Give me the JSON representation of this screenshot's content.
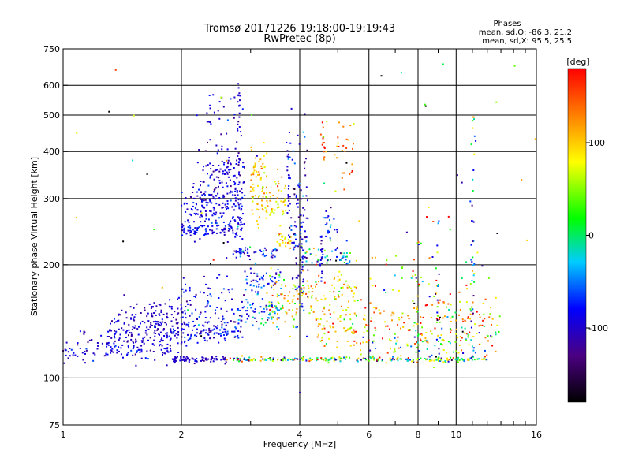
{
  "chart_data": {
    "type": "scatter",
    "title": "Tromsø 20171226 19:18:00-19:19:43",
    "subtitle": "RwPretec (8p)",
    "stats_header": "Phases",
    "stats_o": "mean, sd,O: -86.3, 21.2",
    "stats_x": "mean, sd,X:  95.5, 25.5",
    "xlabel": "Frequency [MHz]",
    "ylabel": "Stationary phase Virtual Height [km]",
    "x_scale": "log",
    "y_scale": "log",
    "xlim": [
      1,
      16
    ],
    "ylim": [
      75,
      750
    ],
    "x_ticks": [
      1,
      2,
      4,
      6,
      8,
      10,
      16
    ],
    "x_tick_labels": [
      "1",
      "2",
      "4",
      "6",
      "8",
      "10",
      "16"
    ],
    "x_minor_ticks": [
      3,
      5,
      7,
      9,
      11,
      12,
      13,
      14,
      15
    ],
    "y_ticks": [
      75,
      100,
      200,
      300,
      400,
      500,
      600,
      750
    ],
    "y_tick_labels": [
      "75",
      "100",
      "200",
      "300",
      "400",
      "500",
      "600",
      "750"
    ],
    "grid": true,
    "colorbar": {
      "label": "[deg]",
      "min": -180,
      "max": 180,
      "ticks": [
        100,
        0,
        -100
      ],
      "tick_labels": [
        "100",
        "0",
        "-100"
      ]
    },
    "clusters": [
      {
        "type": "band",
        "f1": 1.0,
        "f2": 1.9,
        "h": 118,
        "dh": 0.035,
        "n": 90,
        "phase": -95,
        "sd": 15
      },
      {
        "type": "band",
        "f1": 1.05,
        "f2": 1.9,
        "h": 125,
        "dh": 0.04,
        "n": 60,
        "phase": -100,
        "sd": 15
      },
      {
        "type": "band",
        "f1": 1.3,
        "f2": 2.1,
        "h": 132,
        "dh": 0.05,
        "n": 80,
        "phase": -100,
        "sd": 15
      },
      {
        "type": "band",
        "f1": 1.35,
        "f2": 2.0,
        "h": 140,
        "dh": 0.05,
        "n": 70,
        "phase": -105,
        "sd": 15
      },
      {
        "type": "band",
        "f1": 1.6,
        "f2": 2.05,
        "h": 150,
        "dh": 0.06,
        "n": 50,
        "phase": -100,
        "sd": 15
      },
      {
        "type": "band",
        "f1": 1.9,
        "f2": 2.6,
        "h": 112,
        "dh": 0.01,
        "n": 80,
        "phase": -105,
        "sd": 12
      },
      {
        "type": "band",
        "f1": 2.6,
        "f2": 12.0,
        "h": 112,
        "dh": 0.008,
        "n": 240,
        "phase": 30,
        "sd": 90
      },
      {
        "type": "band",
        "f1": 2.0,
        "f2": 2.9,
        "h": 135,
        "dh": 0.05,
        "n": 110,
        "phase": -90,
        "sd": 20
      },
      {
        "type": "band",
        "f1": 2.0,
        "f2": 2.7,
        "h": 160,
        "dh": 0.08,
        "n": 60,
        "phase": -85,
        "sd": 20
      },
      {
        "type": "band",
        "f1": 2.0,
        "f2": 2.9,
        "h": 250,
        "dh": 0.03,
        "n": 110,
        "phase": -90,
        "sd": 15
      },
      {
        "type": "band",
        "f1": 2.0,
        "f2": 2.9,
        "h": 280,
        "dh": 0.05,
        "n": 110,
        "phase": -90,
        "sd": 15
      },
      {
        "type": "band",
        "f1": 2.1,
        "f2": 2.8,
        "h": 310,
        "dh": 0.03,
        "n": 45,
        "phase": -95,
        "sd": 20
      },
      {
        "type": "band",
        "f1": 2.2,
        "f2": 2.9,
        "h": 350,
        "dh": 0.07,
        "n": 70,
        "phase": -100,
        "sd": 15
      },
      {
        "type": "band",
        "f1": 2.3,
        "f2": 2.9,
        "h": 450,
        "dh": 0.18,
        "n": 55,
        "phase": -100,
        "sd": 15
      },
      {
        "type": "band",
        "f1": 2.6,
        "f2": 3.5,
        "h": 215,
        "dh": 0.015,
        "n": 50,
        "phase": -80,
        "sd": 25
      },
      {
        "type": "band",
        "f1": 2.7,
        "f2": 3.6,
        "h": 150,
        "dh": 0.05,
        "n": 70,
        "phase": -60,
        "sd": 40
      },
      {
        "type": "band",
        "f1": 2.9,
        "f2": 3.6,
        "h": 180,
        "dh": 0.05,
        "n": 55,
        "phase": -75,
        "sd": 25
      },
      {
        "type": "band",
        "f1": 3.0,
        "f2": 3.7,
        "h": 300,
        "dh": 0.08,
        "n": 90,
        "phase": 95,
        "sd": 25
      },
      {
        "type": "band",
        "f1": 3.0,
        "f2": 3.3,
        "h": 360,
        "dh": 0.06,
        "n": 35,
        "phase": 95,
        "sd": 20
      },
      {
        "type": "band",
        "f1": 3.3,
        "f2": 4.0,
        "h": 160,
        "dh": 0.08,
        "n": 60,
        "phase": 95,
        "sd": 40
      },
      {
        "type": "band",
        "f1": 3.5,
        "f2": 3.8,
        "h": 235,
        "dh": 0.03,
        "n": 25,
        "phase": 100,
        "sd": 25
      },
      {
        "type": "band",
        "f1": 3.8,
        "f2": 4.2,
        "h": 260,
        "dh": 0.3,
        "n": 90,
        "phase": -90,
        "sd": 30
      },
      {
        "type": "band",
        "f1": 4.0,
        "f2": 5.4,
        "h": 210,
        "dh": 0.03,
        "n": 60,
        "phase": -30,
        "sd": 70
      },
      {
        "type": "band",
        "f1": 4.0,
        "f2": 5.6,
        "h": 165,
        "dh": 0.07,
        "n": 80,
        "phase": 100,
        "sd": 40
      },
      {
        "type": "band",
        "f1": 4.4,
        "f2": 5.6,
        "h": 135,
        "dh": 0.08,
        "n": 60,
        "phase": 90,
        "sd": 50
      },
      {
        "type": "band",
        "f1": 4.6,
        "f2": 5.0,
        "h": 250,
        "dh": 0.05,
        "n": 20,
        "phase": -80,
        "sd": 20
      },
      {
        "type": "band",
        "f1": 4.9,
        "f2": 5.5,
        "h": 390,
        "dh": 0.1,
        "n": 25,
        "phase": 140,
        "sd": 30
      },
      {
        "type": "band",
        "f1": 5.5,
        "f2": 13.0,
        "h": 145,
        "dh": 0.07,
        "n": 130,
        "phase": 110,
        "sd": 50
      },
      {
        "type": "band",
        "f1": 5.5,
        "f2": 13.0,
        "h": 125,
        "dh": 0.05,
        "n": 110,
        "phase": 60,
        "sd": 90
      },
      {
        "type": "band",
        "f1": 6.0,
        "f2": 12.0,
        "h": 200,
        "dh": 0.12,
        "n": 40,
        "phase": 60,
        "sd": 90
      },
      {
        "type": "col",
        "f": 2.8,
        "h1": 280,
        "h2": 640,
        "n": 25,
        "phase": -100,
        "sd": 15
      },
      {
        "type": "col",
        "f": 3.75,
        "h1": 210,
        "h2": 450,
        "n": 30,
        "phase": -95,
        "sd": 20
      },
      {
        "type": "col",
        "f": 4.6,
        "h1": 380,
        "h2": 490,
        "n": 15,
        "phase": 130,
        "sd": 30
      },
      {
        "type": "col",
        "f": 4.55,
        "h1": 180,
        "h2": 240,
        "n": 20,
        "phase": -90,
        "sd": 20
      },
      {
        "type": "col",
        "f": 9.0,
        "h1": 110,
        "h2": 280,
        "n": 18,
        "phase": -60,
        "sd": 60
      },
      {
        "type": "col",
        "f": 11.0,
        "h1": 110,
        "h2": 290,
        "n": 25,
        "phase": -80,
        "sd": 50
      },
      {
        "type": "col",
        "f": 11.05,
        "h1": 290,
        "h2": 520,
        "n": 12,
        "phase": 20,
        "sd": 80
      },
      {
        "type": "col",
        "f": 8.0,
        "h1": 110,
        "h2": 230,
        "n": 15,
        "phase": 60,
        "sd": 70
      },
      {
        "type": "col",
        "f": 4.05,
        "h1": 150,
        "h2": 260,
        "n": 20,
        "phase": -100,
        "sd": 20
      },
      {
        "type": "band",
        "f1": 1.0,
        "f2": 16.0,
        "h": 300,
        "dh": 0.6,
        "n": 70,
        "phase": 0,
        "sd": 120
      }
    ]
  }
}
